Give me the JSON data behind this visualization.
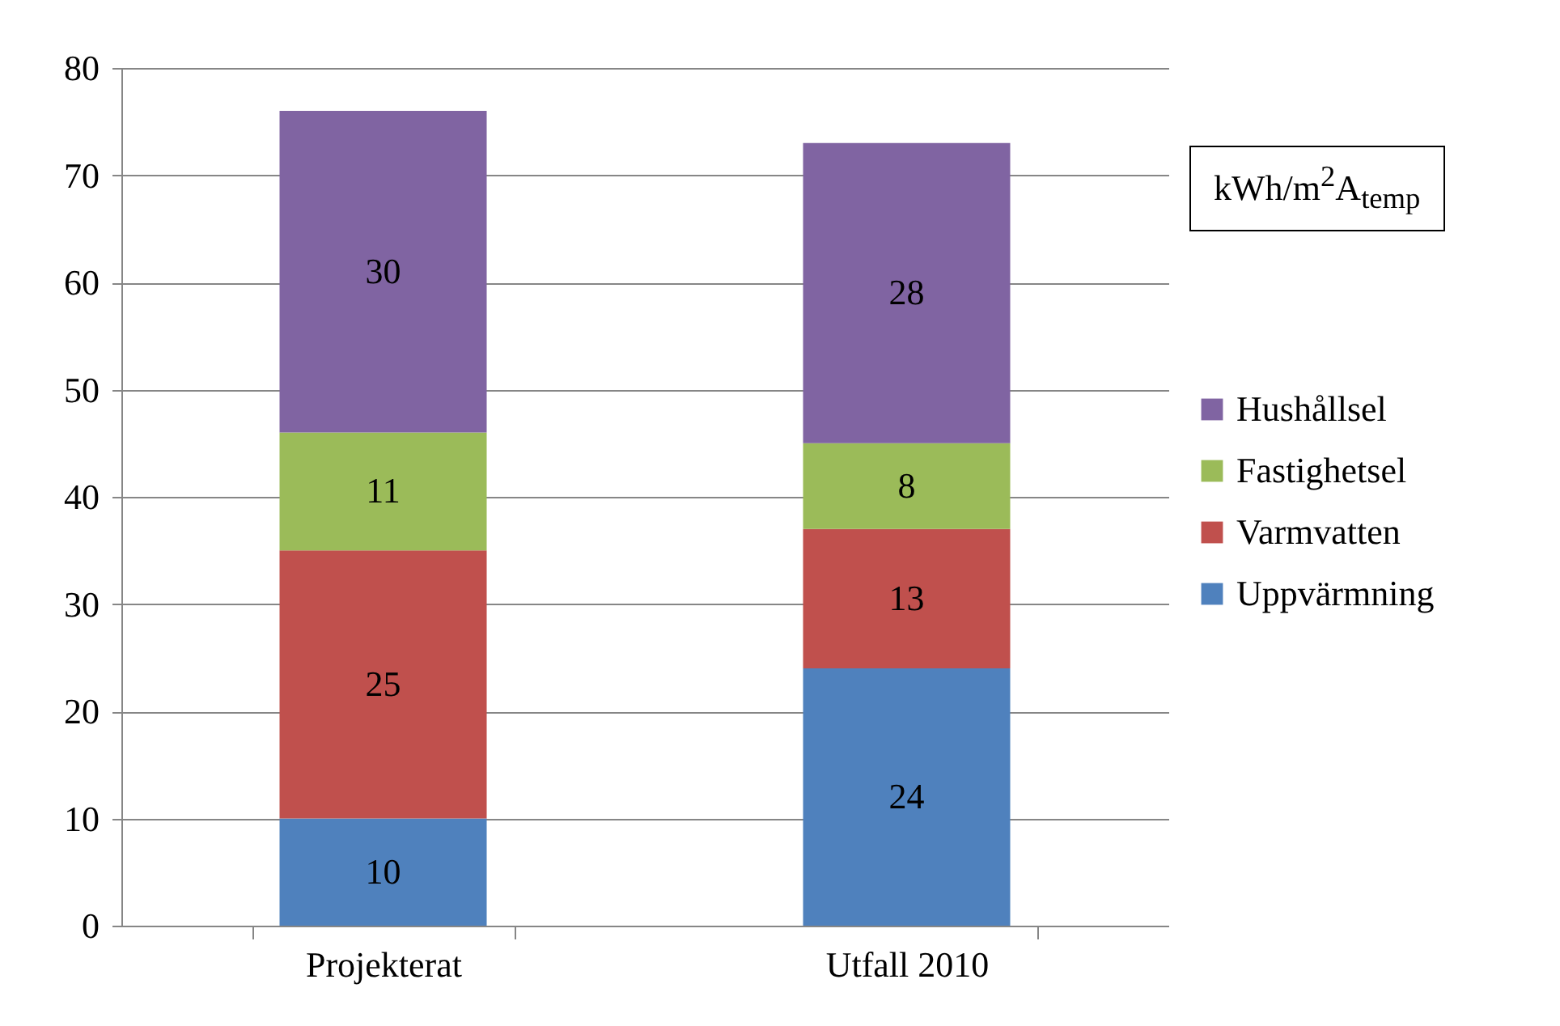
{
  "chart_data": {
    "type": "bar",
    "stacked": true,
    "categories": [
      "Projekterat",
      "Utfall 2010"
    ],
    "series": [
      {
        "name": "Uppvärmning",
        "color": "#4f81bd",
        "values": [
          10,
          24
        ]
      },
      {
        "name": "Varmvatten",
        "color": "#c0504d",
        "values": [
          25,
          13
        ]
      },
      {
        "name": "Fastighetsel",
        "color": "#9bbb59",
        "values": [
          11,
          8
        ]
      },
      {
        "name": "Hushållsel",
        "color": "#8064a2",
        "values": [
          30,
          28
        ]
      }
    ],
    "ylim": [
      0,
      80
    ],
    "yticks": [
      0,
      10,
      20,
      30,
      40,
      50,
      60,
      70,
      80
    ],
    "grid": "y",
    "legend": "right",
    "data_labels": true,
    "annotations": [
      "kWh/m$^{2}$A$_{temp}$"
    ]
  }
}
